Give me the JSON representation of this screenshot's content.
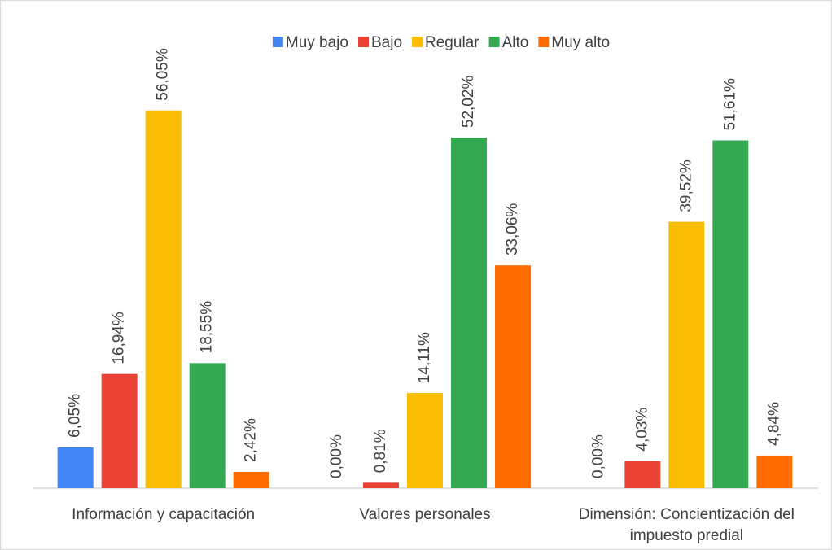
{
  "chart_data": {
    "type": "bar",
    "categories": [
      "Información y capacitación",
      "Valores personales",
      "Dimensión: Concientización del impuesto predial"
    ],
    "series": [
      {
        "name": "Muy bajo",
        "color": "#4285f4",
        "values": [
          6.05,
          0.0,
          0.0
        ],
        "value_labels": [
          "6,05%",
          "0,00%",
          "0,00%"
        ]
      },
      {
        "name": "Bajo",
        "color": "#ea4335",
        "values": [
          16.94,
          0.81,
          4.03
        ],
        "value_labels": [
          "16,94%",
          "0,81%",
          "4,03%"
        ]
      },
      {
        "name": "Regular",
        "color": "#fbbc04",
        "values": [
          56.05,
          14.11,
          39.52
        ],
        "value_labels": [
          "56,05%",
          "14,11%",
          "39,52%"
        ]
      },
      {
        "name": "Alto",
        "color": "#34a853",
        "values": [
          18.55,
          52.02,
          51.61
        ],
        "value_labels": [
          "18,55%",
          "52,02%",
          "51,61%"
        ]
      },
      {
        "name": "Muy alto",
        "color": "#ff6d01",
        "values": [
          2.42,
          33.06,
          4.84
        ],
        "value_labels": [
          "2,42%",
          "33,06%",
          "4,84%"
        ]
      }
    ],
    "ylim": [
      0,
      60
    ],
    "legend": "top"
  }
}
